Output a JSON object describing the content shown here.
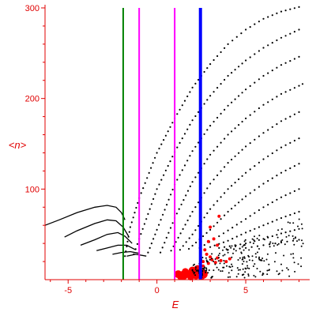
{
  "chart_data": {
    "type": "scatter",
    "title": "",
    "xlabel": "E",
    "ylabel": "<n>",
    "xlim": [
      -6.3,
      8.6
    ],
    "ylim": [
      0,
      300
    ],
    "xticks": [
      -5,
      0,
      5
    ],
    "yticks": [
      100,
      200,
      300
    ],
    "grid": false,
    "colors": {
      "axis": "#e00000",
      "points": "#000000",
      "highlight": "#ff0000",
      "green_line": "#008000",
      "magenta_line": "#ff00ff",
      "blue_line": "#0000ff"
    },
    "vertical_lines": [
      {
        "x": -1.9,
        "color": "#008000"
      },
      {
        "x": -1.0,
        "color": "#ff00ff"
      },
      {
        "x": 1.0,
        "color": "#ff00ff"
      },
      {
        "x": 2.45,
        "color": "#0000ff",
        "thick": true
      }
    ],
    "series": [
      {
        "color": "#000000",
        "kind": "dotted-curve",
        "points": [
          [
            -1.8,
            26
          ],
          [
            -1.5,
            58
          ],
          [
            -1.0,
            90
          ],
          [
            0,
            140
          ],
          [
            1,
            178
          ],
          [
            2,
            212
          ],
          [
            3,
            238
          ],
          [
            4,
            260
          ],
          [
            5,
            276
          ],
          [
            6,
            288
          ],
          [
            7,
            296
          ],
          [
            8,
            301
          ],
          [
            8.4,
            303
          ]
        ]
      },
      {
        "color": "#000000",
        "kind": "dotted-curve",
        "points": [
          [
            -1.3,
            28
          ],
          [
            -1,
            45
          ],
          [
            0,
            100
          ],
          [
            1,
            141
          ],
          [
            2,
            176
          ],
          [
            3,
            203
          ],
          [
            4,
            225
          ],
          [
            5,
            242
          ],
          [
            6,
            256
          ],
          [
            7,
            267
          ],
          [
            8,
            276
          ],
          [
            8.4,
            279
          ]
        ]
      },
      {
        "color": "#000000",
        "kind": "dotted-curve",
        "points": [
          [
            -0.5,
            30
          ],
          [
            0,
            55
          ],
          [
            1,
            105
          ],
          [
            2,
            142
          ],
          [
            3,
            170
          ],
          [
            4,
            192
          ],
          [
            5,
            210
          ],
          [
            6,
            225
          ],
          [
            7,
            237
          ],
          [
            8,
            246
          ],
          [
            8.4,
            249
          ]
        ]
      },
      {
        "color": "#000000",
        "kind": "dotted-curve",
        "points": [
          [
            0.2,
            30
          ],
          [
            1,
            68
          ],
          [
            2,
            108
          ],
          [
            3,
            138
          ],
          [
            4,
            160
          ],
          [
            5,
            178
          ],
          [
            6,
            193
          ],
          [
            7,
            205
          ],
          [
            8,
            214
          ],
          [
            8.4,
            218
          ]
        ]
      },
      {
        "color": "#000000",
        "kind": "dotted-curve",
        "points": [
          [
            0.8,
            32
          ],
          [
            2,
            75
          ],
          [
            3,
            106
          ],
          [
            4,
            129
          ],
          [
            5,
            147
          ],
          [
            6,
            162
          ],
          [
            7,
            175
          ],
          [
            8,
            185
          ],
          [
            8.4,
            188
          ]
        ]
      },
      {
        "color": "#000000",
        "kind": "dotted-curve",
        "points": [
          [
            1.3,
            33
          ],
          [
            2,
            50
          ],
          [
            3,
            78
          ],
          [
            4,
            100
          ],
          [
            5,
            118
          ],
          [
            6,
            133
          ],
          [
            7,
            146
          ],
          [
            8,
            156
          ],
          [
            8.4,
            159
          ]
        ]
      },
      {
        "color": "#000000",
        "kind": "dotted-curve",
        "points": [
          [
            1.8,
            34
          ],
          [
            3,
            55
          ],
          [
            4,
            75
          ],
          [
            5,
            92
          ],
          [
            6,
            106
          ],
          [
            7,
            118
          ],
          [
            8,
            128
          ],
          [
            8.4,
            131
          ]
        ]
      },
      {
        "color": "#000000",
        "kind": "dotted-curve",
        "points": [
          [
            2.4,
            35
          ],
          [
            3.5,
            48
          ],
          [
            5,
            67
          ],
          [
            6,
            80
          ],
          [
            7,
            91
          ],
          [
            8,
            100
          ],
          [
            8.4,
            103
          ]
        ]
      },
      {
        "color": "#000000",
        "kind": "dotted-curve",
        "points": [
          [
            3,
            36
          ],
          [
            4,
            43
          ],
          [
            5,
            52
          ],
          [
            6,
            60
          ],
          [
            7,
            68
          ],
          [
            8,
            75
          ],
          [
            8.4,
            78
          ]
        ]
      },
      {
        "color": "#000000",
        "kind": "dotted-curve",
        "points": [
          [
            3.5,
            35
          ],
          [
            5,
            40
          ],
          [
            6,
            45
          ],
          [
            7,
            51
          ],
          [
            8,
            56
          ],
          [
            8.4,
            58
          ]
        ]
      },
      {
        "color": "#000000",
        "kind": "dotted-curve",
        "points": [
          [
            4,
            33
          ],
          [
            5,
            35
          ],
          [
            6,
            38
          ],
          [
            7,
            41
          ],
          [
            8,
            44
          ],
          [
            8.4,
            46
          ]
        ]
      },
      {
        "color": "#000000",
        "kind": "solid-curve",
        "points": [
          [
            -6.3,
            60
          ],
          [
            -5.5,
            66
          ],
          [
            -4.5,
            74
          ],
          [
            -3.5,
            80
          ],
          [
            -2.8,
            82
          ],
          [
            -2.3,
            80
          ],
          [
            -2.0,
            74
          ],
          [
            -1.8,
            66
          ]
        ]
      },
      {
        "color": "#000000",
        "kind": "solid-curve",
        "points": [
          [
            -5.2,
            47
          ],
          [
            -4.5,
            54
          ],
          [
            -3.5,
            62
          ],
          [
            -2.8,
            66
          ],
          [
            -2.3,
            65
          ],
          [
            -1.9,
            58
          ],
          [
            -1.6,
            48
          ]
        ]
      },
      {
        "color": "#000000",
        "kind": "solid-curve",
        "points": [
          [
            -4.3,
            38
          ],
          [
            -3.5,
            44
          ],
          [
            -2.8,
            50
          ],
          [
            -2.2,
            52
          ],
          [
            -1.8,
            48
          ],
          [
            -1.4,
            40
          ]
        ]
      },
      {
        "color": "#000000",
        "kind": "solid-curve",
        "points": [
          [
            -3.4,
            32
          ],
          [
            -2.8,
            35
          ],
          [
            -2.2,
            38
          ],
          [
            -1.7,
            38
          ],
          [
            -1.2,
            33
          ]
        ]
      },
      {
        "color": "#000000",
        "kind": "solid-curve",
        "points": [
          [
            -2.5,
            28
          ],
          [
            -2.0,
            30
          ],
          [
            -1.5,
            31
          ],
          [
            -1.0,
            29
          ]
        ]
      },
      {
        "color": "#000000",
        "kind": "solid-curve",
        "points": [
          [
            -1.7,
            26
          ],
          [
            -1.2,
            28
          ],
          [
            -0.6,
            26
          ]
        ]
      },
      {
        "color": "#ff0000",
        "kind": "blobs",
        "points": [
          [
            1.2,
            6
          ],
          [
            1.5,
            5
          ],
          [
            1.8,
            6
          ],
          [
            2.1,
            7
          ],
          [
            2.4,
            8
          ],
          [
            2.6,
            6
          ],
          [
            1.6,
            9
          ],
          [
            2.0,
            10
          ],
          [
            2.3,
            11
          ],
          [
            2.5,
            4
          ],
          [
            1.3,
            3
          ],
          [
            1.9,
            3
          ],
          [
            2.2,
            4
          ]
        ],
        "sizes": [
          7,
          8,
          7,
          9,
          9,
          8,
          6,
          7,
          8,
          7,
          5,
          6,
          6
        ]
      },
      {
        "color": "#ff0000",
        "kind": "small-dots",
        "points": [
          [
            2.6,
            20
          ],
          [
            2.9,
            18
          ],
          [
            3.1,
            22
          ],
          [
            3.3,
            19
          ],
          [
            3.6,
            21
          ],
          [
            3.9,
            20
          ],
          [
            4.1,
            23
          ],
          [
            3.0,
            25
          ],
          [
            2.8,
            28
          ],
          [
            3.2,
            45
          ],
          [
            2.9,
            42
          ],
          [
            3.4,
            38
          ],
          [
            2.7,
            33
          ],
          [
            3.5,
            70
          ],
          [
            3.0,
            58
          ],
          [
            2.6,
            15
          ],
          [
            3.4,
            24
          ]
        ]
      }
    ]
  }
}
